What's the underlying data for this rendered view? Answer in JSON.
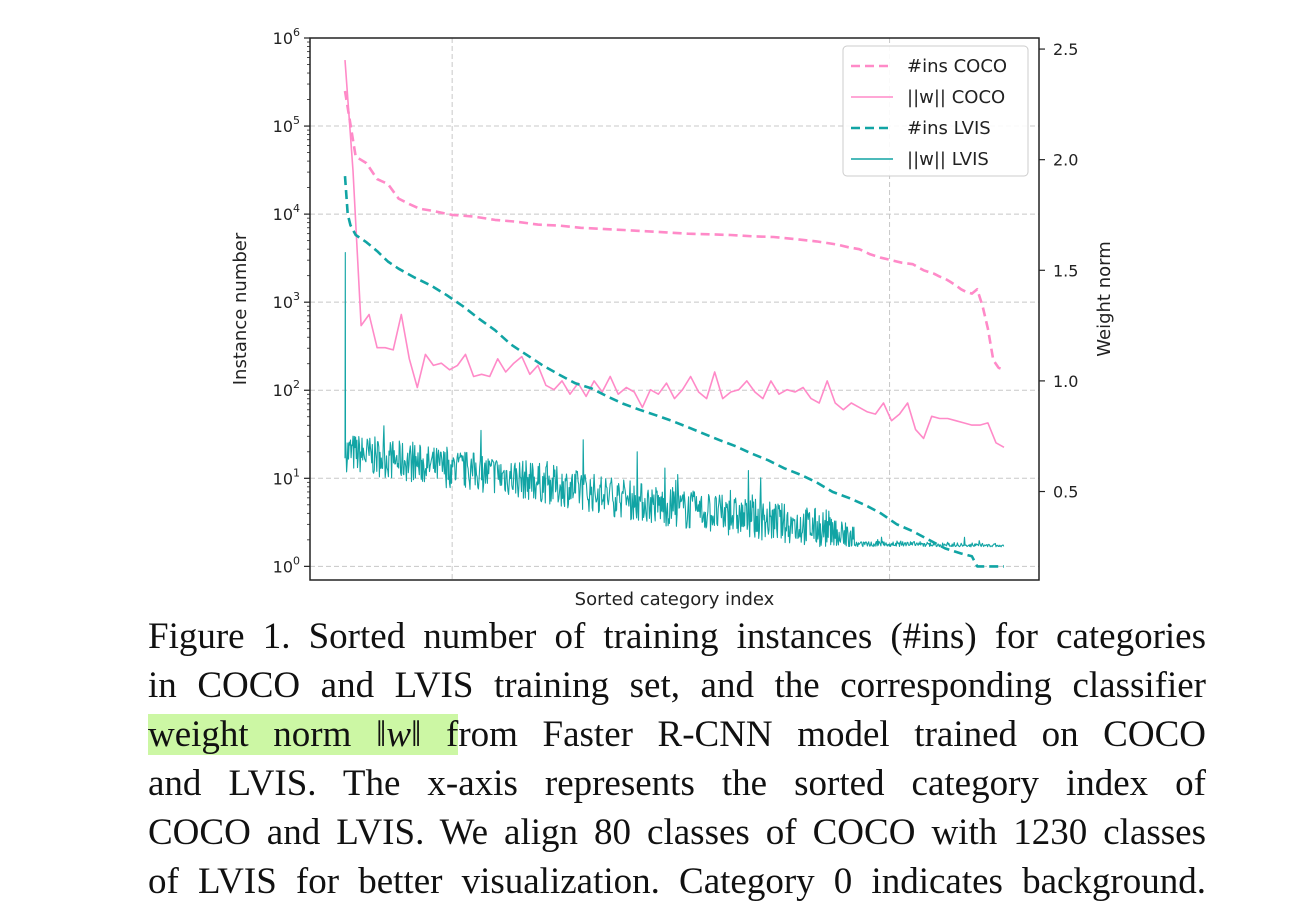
{
  "chart_data": {
    "type": "line",
    "xlabel": "Sorted category index",
    "ylabel_left": "Instance number",
    "ylabel_right": "Weight norm",
    "y_left_scale": "log",
    "y_left_ticks": [
      "10^0",
      "10^1",
      "10^2",
      "10^3",
      "10^4",
      "10^5",
      "10^6"
    ],
    "y_left_range": [
      0.7,
      1000000
    ],
    "y_right_ticks": [
      "0.5",
      "1.0",
      "1.5",
      "2.0",
      "2.5"
    ],
    "y_right_range": [
      0.1,
      2.55
    ],
    "x_range": [
      0,
      1230
    ],
    "x_gridlines": [
      0.195,
      0.795
    ],
    "grid": true,
    "legend_position": "top-right",
    "series": [
      {
        "name": "#ins COCO",
        "color": "#ff8ac8",
        "style": "dashed",
        "axis": "left",
        "x": [
          0,
          20,
          40,
          60,
          80,
          100,
          120,
          140,
          160,
          200,
          240,
          280,
          320,
          360,
          400,
          440,
          480,
          520,
          560,
          600,
          640,
          680,
          720,
          760,
          800,
          840,
          880,
          900,
          920,
          940,
          960,
          980,
          1000,
          1020,
          1040,
          1060,
          1080,
          1100,
          1110,
          1120,
          1130,
          1140,
          1150,
          1160,
          1170,
          1180,
          1190,
          1200,
          1210,
          1220,
          1230
        ],
        "values": [
          250000,
          45000,
          38000,
          25000,
          22000,
          15000,
          13000,
          11500,
          11000,
          9800,
          9400,
          8600,
          8200,
          7600,
          7400,
          7000,
          6800,
          6600,
          6400,
          6200,
          6000,
          5900,
          5800,
          5600,
          5500,
          5200,
          4900,
          4700,
          4500,
          4200,
          4000,
          3500,
          3200,
          3000,
          2800,
          2700,
          2300,
          2100,
          1950,
          1850,
          1700,
          1550,
          1400,
          1300,
          1250,
          1400,
          900,
          500,
          220,
          180,
          170
        ]
      },
      {
        "name": "||w|| COCO",
        "color": "#ff8ac8",
        "style": "solid",
        "axis": "right",
        "x": [
          0,
          15,
          30,
          45,
          60,
          75,
          90,
          105,
          120,
          135,
          150,
          165,
          180,
          195,
          210,
          225,
          240,
          255,
          270,
          285,
          300,
          315,
          330,
          345,
          360,
          375,
          390,
          405,
          420,
          435,
          450,
          465,
          480,
          495,
          510,
          525,
          540,
          555,
          570,
          585,
          600,
          615,
          630,
          645,
          660,
          675,
          690,
          705,
          720,
          735,
          750,
          765,
          780,
          795,
          810,
          825,
          840,
          855,
          870,
          885,
          900,
          915,
          930,
          945,
          960,
          975,
          990,
          1005,
          1020,
          1035,
          1050,
          1065,
          1080,
          1095,
          1110,
          1125,
          1140,
          1155,
          1170,
          1185,
          1200,
          1215,
          1230
        ],
        "values": [
          2.45,
          1.95,
          1.25,
          1.3,
          1.15,
          1.15,
          1.14,
          1.3,
          1.1,
          0.97,
          1.12,
          1.07,
          1.08,
          1.05,
          1.07,
          1.12,
          1.02,
          1.03,
          1.02,
          1.1,
          1.04,
          1.08,
          1.11,
          1.03,
          1.07,
          0.98,
          0.96,
          1.0,
          0.94,
          0.99,
          0.93,
          1.0,
          0.95,
          1.02,
          0.94,
          0.97,
          0.95,
          0.88,
          0.96,
          0.94,
          0.99,
          0.92,
          0.96,
          1.02,
          0.95,
          0.92,
          1.04,
          0.92,
          0.95,
          0.96,
          1.0,
          0.95,
          0.92,
          1.0,
          0.94,
          0.96,
          0.95,
          0.97,
          0.92,
          0.9,
          1.0,
          0.9,
          0.87,
          0.9,
          0.88,
          0.86,
          0.85,
          0.9,
          0.82,
          0.85,
          0.9,
          0.78,
          0.74,
          0.84,
          0.83,
          0.83,
          0.82,
          0.81,
          0.8,
          0.8,
          0.81,
          0.72,
          0.7
        ]
      },
      {
        "name": "#ins LVIS",
        "color": "#11a4a4",
        "style": "dashed",
        "axis": "left",
        "x": [
          0,
          5,
          10,
          20,
          40,
          60,
          80,
          100,
          130,
          160,
          190,
          220,
          250,
          280,
          310,
          340,
          370,
          400,
          430,
          460,
          490,
          520,
          550,
          580,
          610,
          640,
          670,
          700,
          730,
          760,
          790,
          820,
          850,
          880,
          910,
          940,
          970,
          1000,
          1030,
          1060,
          1090,
          1120,
          1150,
          1170,
          1180,
          1200,
          1230
        ],
        "values": [
          27000,
          10000,
          7500,
          5800,
          4800,
          3800,
          2900,
          2400,
          1900,
          1550,
          1200,
          900,
          650,
          480,
          330,
          250,
          190,
          150,
          120,
          105,
          85,
          70,
          60,
          52,
          45,
          38,
          32,
          27,
          23,
          19,
          16,
          13,
          11,
          9,
          7,
          6,
          5,
          4,
          3,
          2.5,
          2.0,
          1.6,
          1.4,
          1.3,
          1.0,
          1.0,
          1.0
        ]
      },
      {
        "name": "||w|| LVIS",
        "color": "#11a4a4",
        "style": "solid",
        "axis": "right",
        "x_range": [
          0,
          1230
        ],
        "start_values": [
          0.65,
          1.58,
          0.7,
          0.72
        ],
        "trend": [
          [
            0,
            0.68
          ],
          [
            150,
            0.62
          ],
          [
            300,
            0.57
          ],
          [
            450,
            0.5
          ],
          [
            600,
            0.43
          ],
          [
            750,
            0.38
          ],
          [
            900,
            0.33
          ],
          [
            950,
            0.26
          ],
          [
            1050,
            0.26
          ],
          [
            1230,
            0.25
          ]
        ]
      }
    ]
  },
  "caption": {
    "line1": "Figure 1. Sorted number of training instances (#ins) for categories",
    "line2": "in COCO and LVIS training set, and the corresponding classifier",
    "line3_highlight": "weight norm ",
    "line3_math": "‖w‖",
    "line3_highlight_tail": " f",
    "line3_rest": "rom Faster R-CNN model trained on COCO",
    "line4": "and LVIS. The x-axis represents the sorted category index of",
    "line5": "COCO and LVIS. We align 80 classes of COCO with 1230 classes",
    "line6": "of LVIS for better visualization. Category 0 indicates background."
  }
}
